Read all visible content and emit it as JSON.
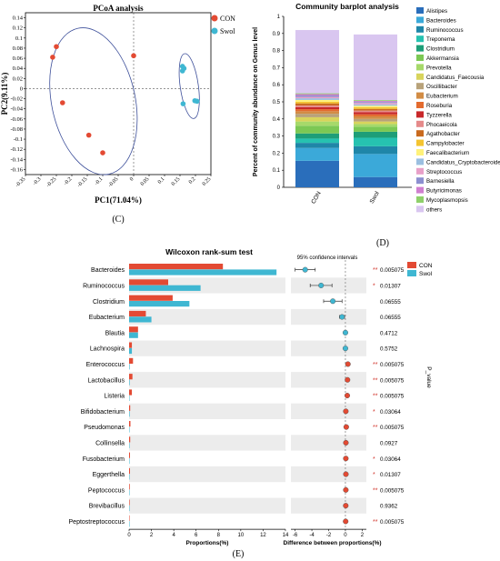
{
  "colors": {
    "con": "#e34a33",
    "swol": "#3fb7d2",
    "axis": "#000000",
    "ellipse": "#3d4f9a",
    "stripe": "#ececec",
    "zeroline": "#777777"
  },
  "panel_labels": {
    "c": "(C)",
    "d": "(D)",
    "e": "(E)"
  },
  "chart_data": [
    {
      "id": "pcoa",
      "type": "scatter",
      "title": "PCoA analysis",
      "xlabel": "PC1(71.04%)",
      "ylabel": "PC2(9.11%)",
      "xlim": [
        -0.35,
        0.25
      ],
      "ylim": [
        -0.17,
        0.15
      ],
      "xticks": [
        "-0.35",
        "-0.3",
        "-0.25",
        "-0.2",
        "-0.15",
        "-0.1",
        "-0.05",
        "0",
        "0.05",
        "0.1",
        "0.15",
        "0.2",
        "0.25"
      ],
      "yticks": [
        "0.14",
        "0.12",
        "0.1",
        "0.08",
        "0.06",
        "0.04",
        "0.02",
        "0",
        "-0.02",
        "-0.04",
        "-0.06",
        "-0.08",
        "-0.1",
        "-0.12",
        "-0.14",
        "-0.16"
      ],
      "legend": [
        "CON",
        "Swol"
      ],
      "series": [
        {
          "name": "CON",
          "points": [
            [
              -0.25,
              0.083
            ],
            [
              -0.262,
              0.062
            ],
            [
              -0.23,
              -0.028
            ],
            [
              -0.145,
              -0.092
            ],
            [
              -0.1,
              -0.127
            ],
            [
              0.0,
              0.065
            ]
          ]
        },
        {
          "name": "Swol",
          "points": [
            [
              0.158,
              0.044
            ],
            [
              0.163,
              0.04
            ],
            [
              0.158,
              0.035
            ],
            [
              0.16,
              -0.03
            ],
            [
              0.198,
              -0.024
            ],
            [
              0.205,
              -0.025
            ]
          ]
        }
      ]
    },
    {
      "id": "barplot",
      "type": "bar",
      "title": "Community barplot analysis",
      "ylabel": "Percent of community abundance on Genus level",
      "categories": [
        "CON",
        "Swol"
      ],
      "yticks": [
        "0",
        "0.1",
        "0.2",
        "0.3",
        "0.4",
        "0.5",
        "0.6",
        "0.7",
        "0.8",
        "0.9",
        "1"
      ],
      "series": [
        {
          "name": "Alistipes",
          "color": "#2a6ebb",
          "values": [
            0.155,
            0.06
          ]
        },
        {
          "name": "Bacteroides",
          "color": "#3ba9d9",
          "values": [
            0.075,
            0.135
          ]
        },
        {
          "name": "Ruminococcus",
          "color": "#1f86a8",
          "values": [
            0.03,
            0.045
          ]
        },
        {
          "name": "Treponema",
          "color": "#26c2b0",
          "values": [
            0.025,
            0.05
          ]
        },
        {
          "name": "Clostridium",
          "color": "#1e9e78",
          "values": [
            0.03,
            0.035
          ]
        },
        {
          "name": "Akkermansia",
          "color": "#7cc854",
          "values": [
            0.045,
            0.03
          ]
        },
        {
          "name": "Prevotella",
          "color": "#a6d96a",
          "values": [
            0.025,
            0.015
          ]
        },
        {
          "name": "Candidatus_Faecousia",
          "color": "#d8d45c",
          "values": [
            0.025,
            0.015
          ]
        },
        {
          "name": "Oscillibacter",
          "color": "#b8a27a",
          "values": [
            0.02,
            0.015
          ]
        },
        {
          "name": "Eubacterium",
          "color": "#d28c45",
          "values": [
            0.015,
            0.015
          ]
        },
        {
          "name": "Roseburia",
          "color": "#e36b2f",
          "values": [
            0.012,
            0.012
          ]
        },
        {
          "name": "Tyzzerella",
          "color": "#c8282a",
          "values": [
            0.012,
            0.012
          ]
        },
        {
          "name": "Phocaeicola",
          "color": "#e58a8a",
          "values": [
            0.01,
            0.01
          ]
        },
        {
          "name": "Agathobacter",
          "color": "#c96a1e",
          "values": [
            0.012,
            0.01
          ]
        },
        {
          "name": "Campylobacter",
          "color": "#f4c430",
          "values": [
            0.01,
            0.01
          ]
        },
        {
          "name": "Faecalibacterium",
          "color": "#fff27a",
          "values": [
            0.01,
            0.008
          ]
        },
        {
          "name": "Candidatus_Cryptobacteroides",
          "color": "#9bbfe0",
          "values": [
            0.01,
            0.008
          ]
        },
        {
          "name": "Streptococcus",
          "color": "#e8a0c8",
          "values": [
            0.008,
            0.008
          ]
        },
        {
          "name": "Barnesiella",
          "color": "#8c8fd0",
          "values": [
            0.008,
            0.006
          ]
        },
        {
          "name": "Butyricimonas",
          "color": "#d07fd0",
          "values": [
            0.008,
            0.006
          ]
        },
        {
          "name": "Mycoplasmopsis",
          "color": "#8fd06b",
          "values": [
            0.005,
            0.005
          ]
        },
        {
          "name": "others",
          "color": "#d9c6f0",
          "values": [
            0.37,
            0.384
          ]
        }
      ]
    },
    {
      "id": "wilcoxon",
      "type": "bar",
      "title": "Wilcoxon rank-sum test",
      "xlabel": "Proportions(%)",
      "xlabel2": "Difference between proportions(%)",
      "ci_label": "95% confidence intervals",
      "pvalue_label": "P_value",
      "legend": [
        "CON",
        "Swol"
      ],
      "xticks": [
        "0",
        "2",
        "4",
        "6",
        "8",
        "10",
        "12",
        "14"
      ],
      "xticks2": [
        "-6",
        "-4",
        "-2",
        "0",
        "2"
      ],
      "categories": [
        "Bacteroides",
        "Ruminococcus",
        "Clostridium",
        "Eubacterium",
        "Blautia",
        "Lachnospira",
        "Enterococcus",
        "Lactobacillus",
        "Listeria",
        "Bifidobacterium",
        "Pseudomonas",
        "Collinsella",
        "Fusobacterium",
        "Eggerthella",
        "Peptococcus",
        "Brevibacillus",
        "Peptostreptococcus"
      ],
      "series": [
        {
          "name": "CON",
          "values": [
            8.4,
            3.5,
            3.9,
            1.5,
            0.8,
            0.25,
            0.35,
            0.3,
            0.25,
            0.1,
            0.12,
            0.1,
            0.08,
            0.08,
            0.06,
            0.05,
            0.04
          ]
        },
        {
          "name": "Swol",
          "values": [
            13.2,
            6.4,
            5.4,
            2.0,
            0.8,
            0.25,
            0.05,
            0.05,
            0.03,
            0.05,
            0.02,
            0.04,
            0.03,
            0.02,
            0.01,
            0.01,
            0.01
          ]
        }
      ],
      "difference": [
        -4.8,
        -2.9,
        -1.5,
        -0.4,
        0.0,
        0.0,
        0.3,
        0.25,
        0.22,
        0.05,
        0.1,
        0.06,
        0.05,
        0.06,
        0.05,
        0.04,
        0.03
      ],
      "ci_low": [
        -6.0,
        -4.2,
        -2.6,
        -0.7
      ],
      "ci_high": [
        -3.6,
        -1.6,
        -0.4,
        -0.1
      ],
      "stars": [
        "**",
        "*",
        "",
        "",
        "",
        "",
        "**",
        "**",
        "**",
        "*",
        "**",
        "",
        "*",
        "*",
        "**",
        "",
        "**"
      ],
      "pvalues": [
        "0.005075",
        "0.01307",
        "0.06555",
        "0.06555",
        "0.4712",
        "0.5752",
        "0.005075",
        "0.005075",
        "0.005075",
        "0.03064",
        "0.005075",
        "0.0927",
        "0.03064",
        "0.01307",
        "0.005075",
        "0.9362",
        "0.005075"
      ]
    }
  ]
}
